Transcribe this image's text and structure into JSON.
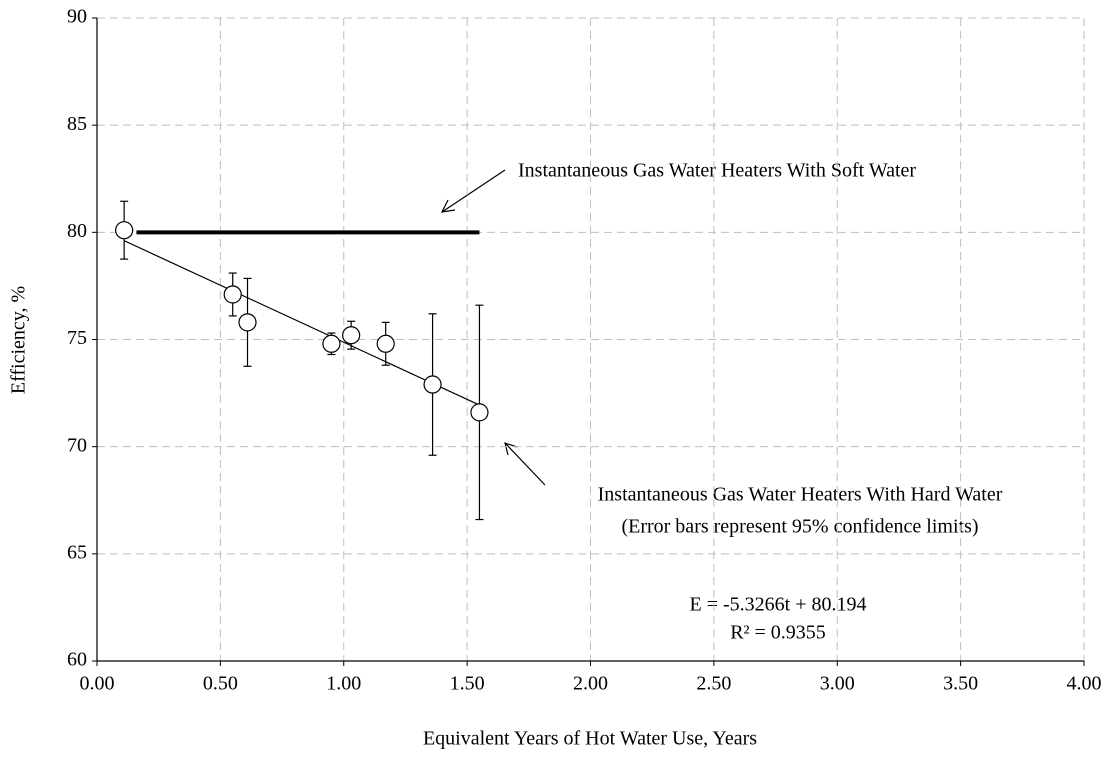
{
  "chart_data": {
    "type": "scatter",
    "xlabel": "Equivalent Years of Hot Water Use, Years",
    "ylabel": "Efficiency, %",
    "series": [
      {
        "name": "Instantaneous Gas Water Heaters With Hard Water",
        "color": "#000000",
        "x": [
          0.11,
          0.55,
          0.61,
          0.95,
          1.03,
          1.17,
          1.36,
          1.55
        ],
        "values": [
          80.1,
          77.1,
          75.8,
          74.8,
          75.2,
          74.8,
          72.9,
          71.6
        ],
        "errors": [
          1.35,
          1.0,
          2.05,
          0.5,
          0.65,
          1.0,
          3.3,
          5.0
        ]
      }
    ],
    "trendline": {
      "x": [
        0.11,
        1.55
      ],
      "values": [
        79.61,
        71.94
      ]
    },
    "soft_water_line": {
      "x": [
        0.16,
        1.55
      ],
      "values": [
        80,
        80
      ]
    },
    "annotations": [
      "Instantaneous Gas Water Heaters With Soft Water",
      "Instantaneous Gas Water Heaters With Hard Water",
      "(Error bars represent 95% confidence limits)",
      "E = -5.3266t + 80.194",
      "R² = 0.9355"
    ],
    "xlim": [
      0,
      4
    ],
    "xticks": [
      {
        "value": 0,
        "label": "0.00"
      },
      {
        "value": 0.5,
        "label": "0.50"
      },
      {
        "value": 1,
        "label": "1.00"
      },
      {
        "value": 1.5,
        "label": "1.50"
      },
      {
        "value": 2,
        "label": "2.00"
      },
      {
        "value": 2.5,
        "label": "2.50"
      },
      {
        "value": 3,
        "label": "3.00"
      },
      {
        "value": 3.5,
        "label": "3.50"
      },
      {
        "value": 4,
        "label": "4.00"
      }
    ],
    "ylim": [
      60,
      90
    ],
    "yticks": [
      60,
      65,
      70,
      75,
      80,
      85,
      90
    ],
    "grid": true
  }
}
